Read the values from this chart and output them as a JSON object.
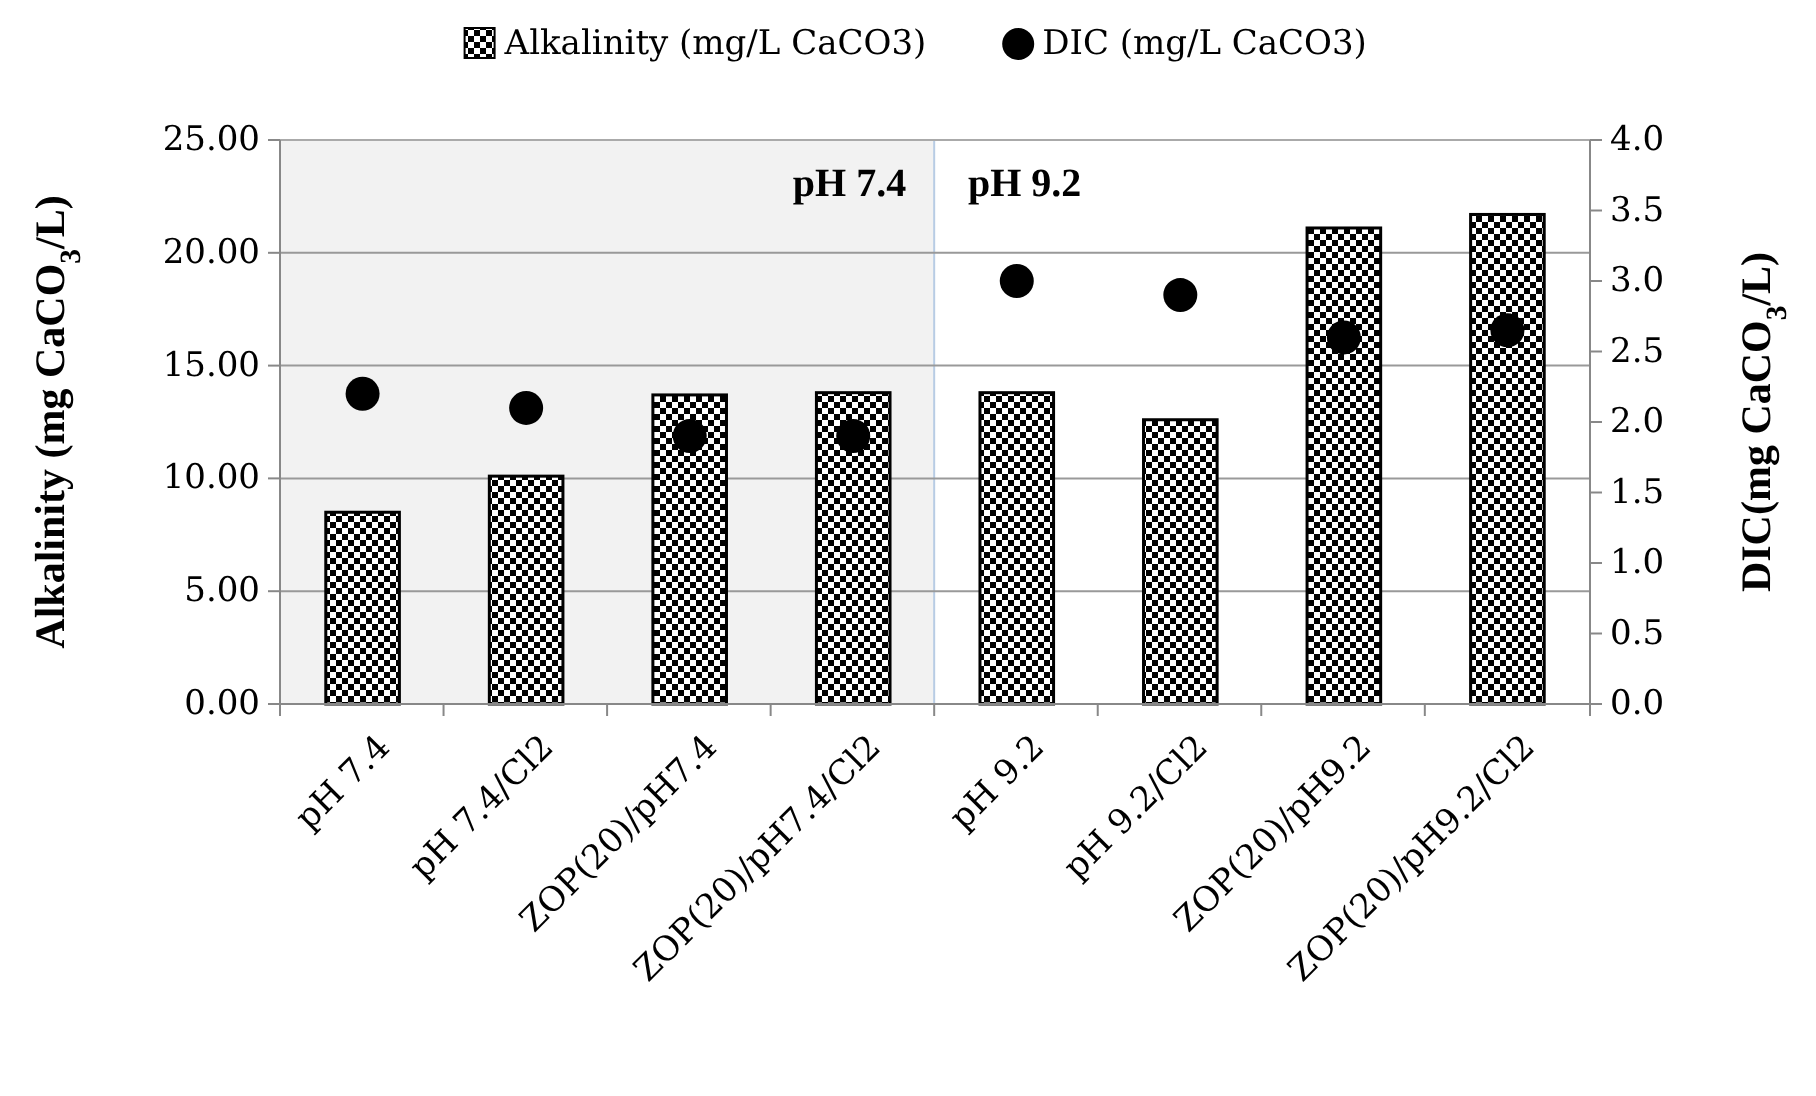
{
  "chart_data": {
    "type": "bar",
    "categories": [
      "pH 7.4",
      "pH 7.4/Cl2",
      "ZOP(20)/pH7.4",
      "ZOP(20)/pH7.4/Cl2",
      "pH 9.2",
      "pH 9.2/Cl2",
      "ZOP(20)/pH9.2",
      "ZOP(20)/pH9.2/Cl2"
    ],
    "series": [
      {
        "name": "Alkalinity (mg/L CaCO3)",
        "type": "bar",
        "color": "#000000",
        "values": [
          8.5,
          10.1,
          13.7,
          13.8,
          13.8,
          12.6,
          21.1,
          21.7
        ]
      },
      {
        "name": "DIC (mg/L CaCO3)",
        "type": "scatter",
        "axis": "y2",
        "marker": "circle",
        "color": "#000000",
        "values": [
          2.2,
          2.1,
          1.9,
          1.9,
          3.0,
          2.9,
          2.6,
          2.65
        ]
      }
    ],
    "ylabel": "Alkalinity (mg CaCO$_{3}$/L)",
    "y2label": "DIC(mg CaCO$_{3}$/L)",
    "ylim": [
      0,
      25
    ],
    "yticks": [
      {
        "value": 0,
        "label": "0.00"
      },
      {
        "value": 5,
        "label": "5.00"
      },
      {
        "value": 10,
        "label": "10.00"
      },
      {
        "value": 15,
        "label": "15.00"
      },
      {
        "value": 20,
        "label": "20.00"
      },
      {
        "value": 25,
        "label": "25.00"
      }
    ],
    "y2lim": [
      0,
      4
    ],
    "y2ticks": [
      {
        "value": 0,
        "label": "0.0"
      },
      {
        "value": 0.5,
        "label": "0.5"
      },
      {
        "value": 1,
        "label": "1.0"
      },
      {
        "value": 1.5,
        "label": "1.5"
      },
      {
        "value": 2,
        "label": "2.0"
      },
      {
        "value": 2.5,
        "label": "2.5"
      },
      {
        "value": 3,
        "label": "3.0"
      },
      {
        "value": 3.5,
        "label": "3.5"
      },
      {
        "value": 4,
        "label": "4.0"
      }
    ],
    "annotations": [
      "pH 7.4",
      "pH 9.2"
    ],
    "grid": "y",
    "legend": "top"
  }
}
